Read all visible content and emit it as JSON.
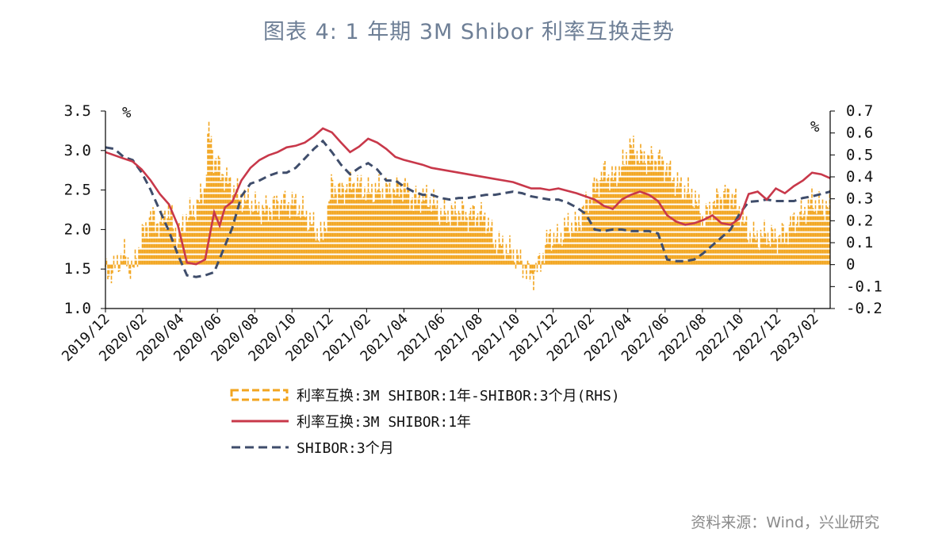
{
  "title": "图表 4:  1 年期 3M Shibor 利率互换走势",
  "source": "资料来源：Wind，兴业研究",
  "colors": {
    "spread": "#f2a51f",
    "swap": "#c8384a",
    "shibor": "#3f4d6b",
    "axis": "#000000"
  },
  "chart_data": {
    "type": "line",
    "title": "1 年期 3M Shibor 利率互换走势",
    "left_axis": {
      "unit": "%",
      "min": 1.0,
      "max": 3.5,
      "ticks": [
        "1.0",
        "1.5",
        "2.0",
        "2.5",
        "3.0",
        "3.5"
      ]
    },
    "right_axis": {
      "unit": "%",
      "min": -0.2,
      "max": 0.7,
      "ticks": [
        "-0.2",
        "-0.1",
        "0",
        "0.1",
        "0.2",
        "0.3",
        "0.4",
        "0.5",
        "0.6",
        "0.7"
      ]
    },
    "x_labels": [
      "2019/12",
      "2020/02",
      "2020/04",
      "2020/06",
      "2020/08",
      "2020/10",
      "2020/12",
      "2021/02",
      "2021/04",
      "2021/06",
      "2021/08",
      "2021/10",
      "2021/12",
      "2022/02",
      "2022/04",
      "2022/06",
      "2022/08",
      "2022/10",
      "2022/12",
      "2023/02"
    ],
    "x_range": [
      0,
      40
    ],
    "series": [
      {
        "name": "利率互换:3M SHIBOR:1年-SHIBOR:3个月(RHS)",
        "axis": "right",
        "style": "dashed-bars",
        "points": [
          [
            0,
            -0.04
          ],
          [
            0.5,
            -0.02
          ],
          [
            1,
            0.05
          ],
          [
            1.5,
            -0.03
          ],
          [
            2,
            0.12
          ],
          [
            2.5,
            0.22
          ],
          [
            3,
            0.18
          ],
          [
            3.5,
            0.25
          ],
          [
            4,
            0.12
          ],
          [
            4.5,
            0.22
          ],
          [
            5,
            0.26
          ],
          [
            5.5,
            0.35
          ],
          [
            5.7,
            0.62
          ],
          [
            6,
            0.48
          ],
          [
            6.5,
            0.41
          ],
          [
            7,
            0.35
          ],
          [
            7.5,
            0.3
          ],
          [
            8,
            0.28
          ],
          [
            8.5,
            0.25
          ],
          [
            9,
            0.25
          ],
          [
            9.5,
            0.28
          ],
          [
            10,
            0.28
          ],
          [
            10.5,
            0.28
          ],
          [
            11,
            0.23
          ],
          [
            11.5,
            0.17
          ],
          [
            12,
            0.12
          ],
          [
            12.5,
            0.36
          ],
          [
            13,
            0.33
          ],
          [
            13.5,
            0.37
          ],
          [
            14,
            0.36
          ],
          [
            14.5,
            0.33
          ],
          [
            15,
            0.34
          ],
          [
            15.5,
            0.34
          ],
          [
            16,
            0.34
          ],
          [
            16.5,
            0.36
          ],
          [
            17,
            0.29
          ],
          [
            17.5,
            0.31
          ],
          [
            18,
            0.29
          ],
          [
            18.5,
            0.23
          ],
          [
            19,
            0.23
          ],
          [
            19.5,
            0.24
          ],
          [
            20,
            0.22
          ],
          [
            20.5,
            0.23
          ],
          [
            21,
            0.21
          ],
          [
            21.5,
            0.1
          ],
          [
            22,
            0.08
          ],
          [
            22.5,
            0.05
          ],
          [
            23,
            0.01
          ],
          [
            23.5,
            -0.06
          ],
          [
            24,
            0.01
          ],
          [
            24.5,
            0.13
          ],
          [
            25,
            0.11
          ],
          [
            25.5,
            0.18
          ],
          [
            26,
            0.17
          ],
          [
            26.5,
            0.27
          ],
          [
            27,
            0.35
          ],
          [
            27.5,
            0.42
          ],
          [
            28,
            0.39
          ],
          [
            28.5,
            0.44
          ],
          [
            29,
            0.54
          ],
          [
            29.5,
            0.49
          ],
          [
            30,
            0.48
          ],
          [
            30.5,
            0.48
          ],
          [
            31,
            0.44
          ],
          [
            31.5,
            0.37
          ],
          [
            32,
            0.34
          ],
          [
            32.5,
            0.31
          ],
          [
            33,
            0.2
          ],
          [
            33.5,
            0.27
          ],
          [
            34,
            0.31
          ],
          [
            34.5,
            0.32
          ],
          [
            35,
            0.25
          ],
          [
            35.5,
            0.14
          ],
          [
            36,
            0.12
          ],
          [
            36.5,
            0.14
          ],
          [
            37,
            0.12
          ],
          [
            37.5,
            0.14
          ],
          [
            38,
            0.2
          ],
          [
            38.5,
            0.23
          ],
          [
            39,
            0.29
          ],
          [
            39.5,
            0.26
          ],
          [
            40,
            0.27
          ]
        ]
      },
      {
        "name": "利率互换:3M SHIBOR:1年",
        "axis": "left",
        "style": "solid",
        "points": [
          [
            0,
            2.98
          ],
          [
            0.5,
            2.94
          ],
          [
            1,
            2.9
          ],
          [
            1.5,
            2.86
          ],
          [
            2,
            2.76
          ],
          [
            2.5,
            2.62
          ],
          [
            3,
            2.45
          ],
          [
            3.5,
            2.32
          ],
          [
            4,
            2.05
          ],
          [
            4.5,
            1.58
          ],
          [
            5,
            1.56
          ],
          [
            5.5,
            1.62
          ],
          [
            6,
            2.22
          ],
          [
            6.3,
            2.05
          ],
          [
            6.6,
            2.28
          ],
          [
            7,
            2.35
          ],
          [
            7.5,
            2.62
          ],
          [
            8,
            2.78
          ],
          [
            8.5,
            2.88
          ],
          [
            9,
            2.94
          ],
          [
            9.5,
            2.98
          ],
          [
            10,
            3.04
          ],
          [
            10.5,
            3.06
          ],
          [
            11,
            3.1
          ],
          [
            11.5,
            3.18
          ],
          [
            12,
            3.28
          ],
          [
            12.5,
            3.23
          ],
          [
            13,
            3.1
          ],
          [
            13.5,
            2.98
          ],
          [
            14,
            3.05
          ],
          [
            14.5,
            3.15
          ],
          [
            15,
            3.1
          ],
          [
            15.5,
            3.02
          ],
          [
            16,
            2.92
          ],
          [
            16.5,
            2.88
          ],
          [
            17,
            2.85
          ],
          [
            17.5,
            2.82
          ],
          [
            18,
            2.78
          ],
          [
            18.5,
            2.76
          ],
          [
            19,
            2.74
          ],
          [
            19.5,
            2.72
          ],
          [
            20,
            2.7
          ],
          [
            20.5,
            2.68
          ],
          [
            21,
            2.66
          ],
          [
            21.5,
            2.64
          ],
          [
            22,
            2.62
          ],
          [
            22.5,
            2.6
          ],
          [
            23,
            2.56
          ],
          [
            23.5,
            2.52
          ],
          [
            24,
            2.52
          ],
          [
            24.5,
            2.5
          ],
          [
            25,
            2.52
          ],
          [
            25.5,
            2.49
          ],
          [
            26,
            2.46
          ],
          [
            26.5,
            2.42
          ],
          [
            27,
            2.38
          ],
          [
            27.5,
            2.3
          ],
          [
            28,
            2.26
          ],
          [
            28.5,
            2.38
          ],
          [
            29,
            2.44
          ],
          [
            29.5,
            2.48
          ],
          [
            30,
            2.44
          ],
          [
            30.5,
            2.36
          ],
          [
            31,
            2.18
          ],
          [
            31.5,
            2.1
          ],
          [
            32,
            2.06
          ],
          [
            32.5,
            2.08
          ],
          [
            33,
            2.12
          ],
          [
            33.5,
            2.18
          ],
          [
            34,
            2.08
          ],
          [
            34.5,
            2.06
          ],
          [
            35,
            2.14
          ],
          [
            35.5,
            2.45
          ],
          [
            36,
            2.48
          ],
          [
            36.5,
            2.38
          ],
          [
            37,
            2.52
          ],
          [
            37.5,
            2.46
          ],
          [
            38,
            2.55
          ],
          [
            38.5,
            2.62
          ],
          [
            39,
            2.72
          ],
          [
            39.5,
            2.7
          ],
          [
            40,
            2.65
          ]
        ]
      },
      {
        "name": "SHIBOR:3个月",
        "axis": "left",
        "style": "dashed",
        "points": [
          [
            0,
            3.04
          ],
          [
            0.5,
            3.02
          ],
          [
            1,
            2.92
          ],
          [
            1.5,
            2.88
          ],
          [
            2,
            2.72
          ],
          [
            2.5,
            2.5
          ],
          [
            3,
            2.24
          ],
          [
            3.5,
            1.98
          ],
          [
            4,
            1.68
          ],
          [
            4.5,
            1.42
          ],
          [
            5,
            1.4
          ],
          [
            5.5,
            1.42
          ],
          [
            6,
            1.46
          ],
          [
            6.5,
            1.74
          ],
          [
            7,
            2.02
          ],
          [
            7.5,
            2.42
          ],
          [
            8,
            2.58
          ],
          [
            8.5,
            2.62
          ],
          [
            9,
            2.68
          ],
          [
            9.5,
            2.72
          ],
          [
            10,
            2.72
          ],
          [
            10.5,
            2.78
          ],
          [
            11,
            2.9
          ],
          [
            11.5,
            3.02
          ],
          [
            12,
            3.12
          ],
          [
            12.5,
            2.98
          ],
          [
            13,
            2.82
          ],
          [
            13.5,
            2.7
          ],
          [
            14,
            2.78
          ],
          [
            14.5,
            2.84
          ],
          [
            15,
            2.76
          ],
          [
            15.5,
            2.62
          ],
          [
            16,
            2.62
          ],
          [
            16.5,
            2.54
          ],
          [
            17,
            2.48
          ],
          [
            17.5,
            2.44
          ],
          [
            18,
            2.44
          ],
          [
            18.5,
            2.4
          ],
          [
            19,
            2.38
          ],
          [
            19.5,
            2.4
          ],
          [
            20,
            2.4
          ],
          [
            20.5,
            2.42
          ],
          [
            21,
            2.44
          ],
          [
            21.5,
            2.44
          ],
          [
            22,
            2.46
          ],
          [
            22.5,
            2.48
          ],
          [
            23,
            2.46
          ],
          [
            23.5,
            2.42
          ],
          [
            24,
            2.4
          ],
          [
            24.5,
            2.38
          ],
          [
            25,
            2.38
          ],
          [
            25.5,
            2.34
          ],
          [
            26,
            2.28
          ],
          [
            26.5,
            2.2
          ],
          [
            27,
            2.0
          ],
          [
            27.5,
            1.98
          ],
          [
            28,
            2.0
          ],
          [
            28.5,
            2.0
          ],
          [
            29,
            1.98
          ],
          [
            29.5,
            1.98
          ],
          [
            30,
            1.98
          ],
          [
            30.5,
            1.95
          ],
          [
            31,
            1.62
          ],
          [
            31.5,
            1.6
          ],
          [
            32,
            1.6
          ],
          [
            32.5,
            1.62
          ],
          [
            33,
            1.7
          ],
          [
            33.5,
            1.8
          ],
          [
            34,
            1.9
          ],
          [
            34.5,
            2.0
          ],
          [
            35,
            2.2
          ],
          [
            35.5,
            2.35
          ],
          [
            36,
            2.36
          ],
          [
            36.5,
            2.38
          ],
          [
            37,
            2.36
          ],
          [
            37.5,
            2.36
          ],
          [
            38,
            2.36
          ],
          [
            38.5,
            2.4
          ],
          [
            39,
            2.42
          ],
          [
            39.5,
            2.45
          ],
          [
            40,
            2.48
          ]
        ]
      }
    ],
    "legend": [
      "利率互换:3M SHIBOR:1年-SHIBOR:3个月(RHS)",
      "利率互换:3M SHIBOR:1年",
      "SHIBOR:3个月"
    ],
    "legend_position": "bottom"
  }
}
